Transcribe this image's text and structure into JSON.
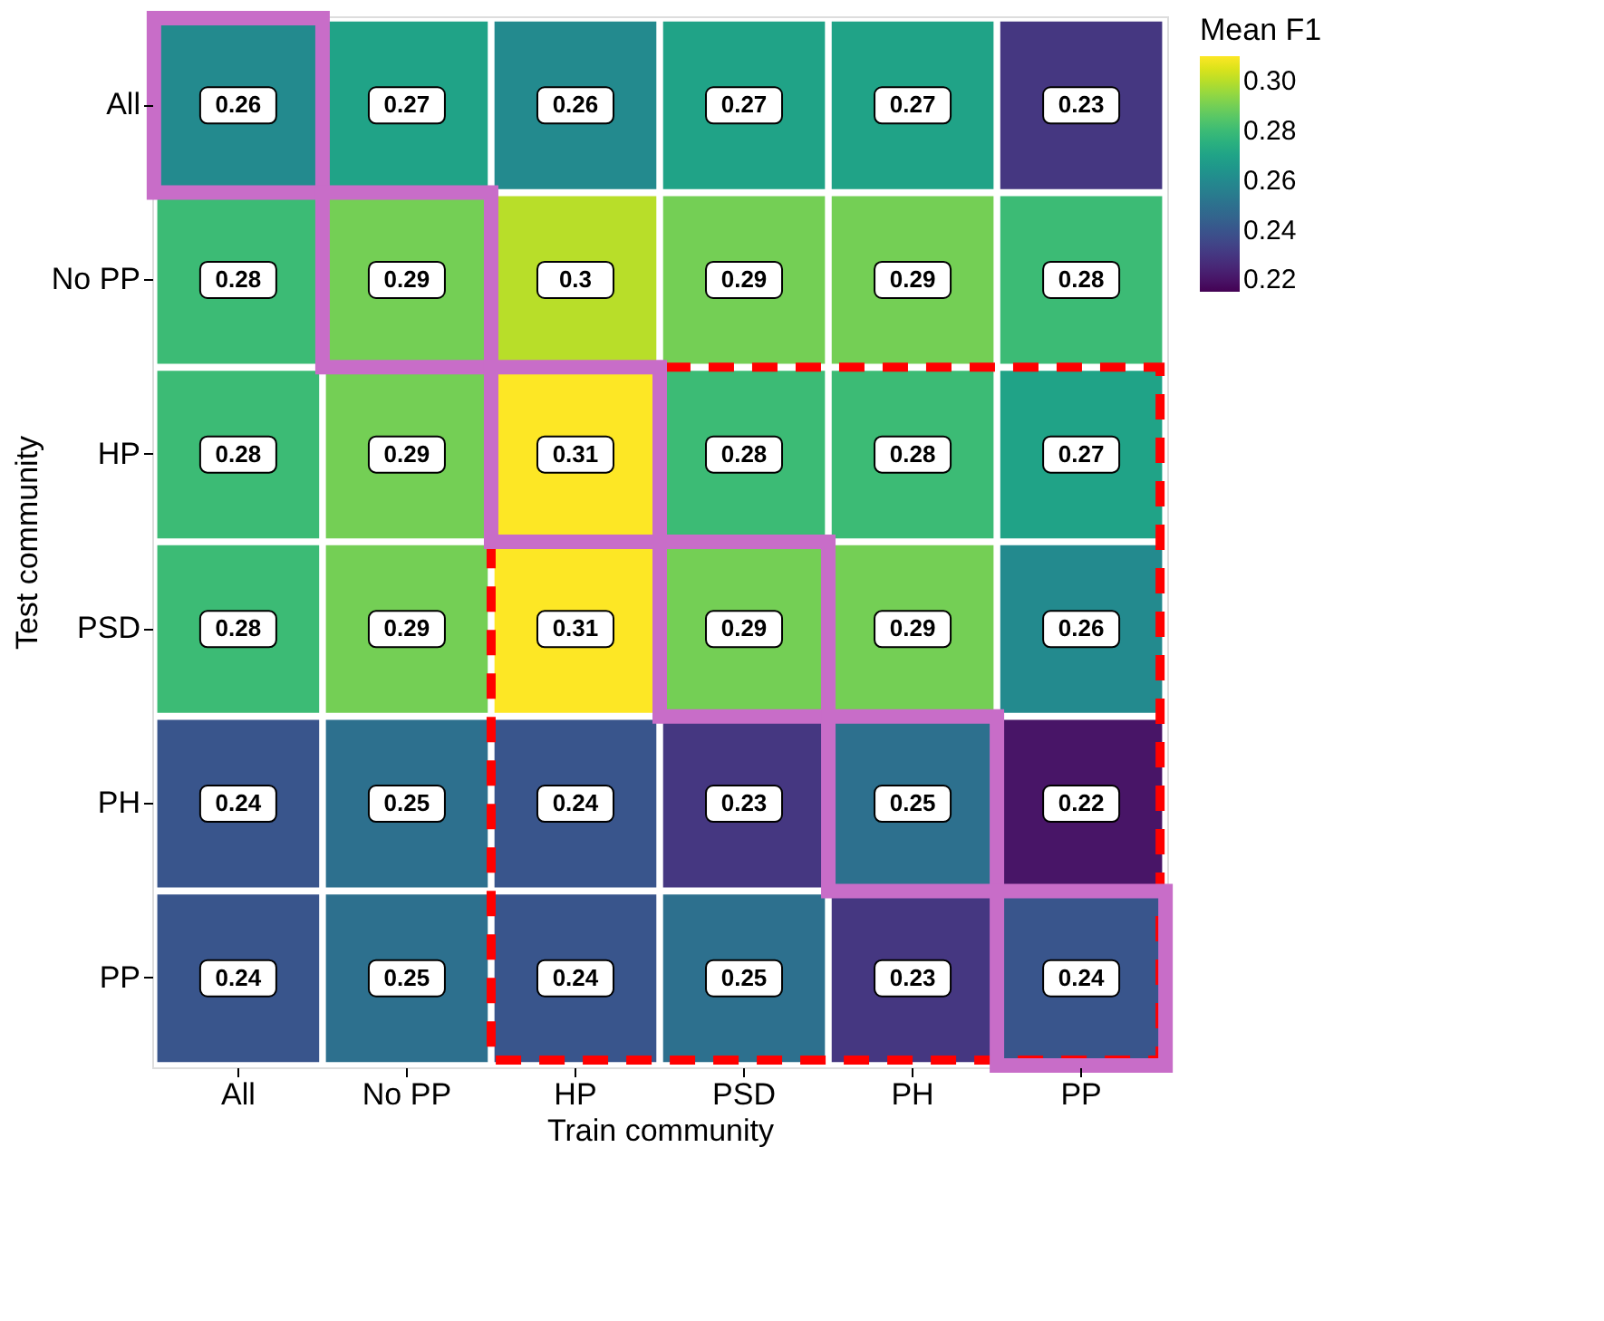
{
  "chart_data": {
    "type": "heatmap",
    "xlabel": "Train community",
    "ylabel": "Test community",
    "clabel": "Mean F1",
    "categories": [
      "All",
      "No PP",
      "HP",
      "PSD",
      "PH",
      "PP"
    ],
    "y_categories": [
      "All",
      "No PP",
      "HP",
      "PSD",
      "PH",
      "PP"
    ],
    "cells": [
      [
        0.26,
        0.27,
        0.26,
        0.27,
        0.27,
        0.23
      ],
      [
        0.28,
        0.29,
        0.3,
        0.29,
        0.29,
        0.28
      ],
      [
        0.28,
        0.29,
        0.31,
        0.28,
        0.28,
        0.27
      ],
      [
        0.28,
        0.29,
        0.31,
        0.29,
        0.29,
        0.26
      ],
      [
        0.24,
        0.25,
        0.24,
        0.23,
        0.25,
        0.22
      ],
      [
        0.24,
        0.25,
        0.24,
        0.25,
        0.23,
        0.24
      ]
    ],
    "clim": [
      0.215,
      0.31
    ],
    "cticks": [
      0.22,
      0.24,
      0.26,
      0.28,
      {
        "value": 0.3,
        "label": "0.30"
      }
    ],
    "data_labels": true
  }
}
